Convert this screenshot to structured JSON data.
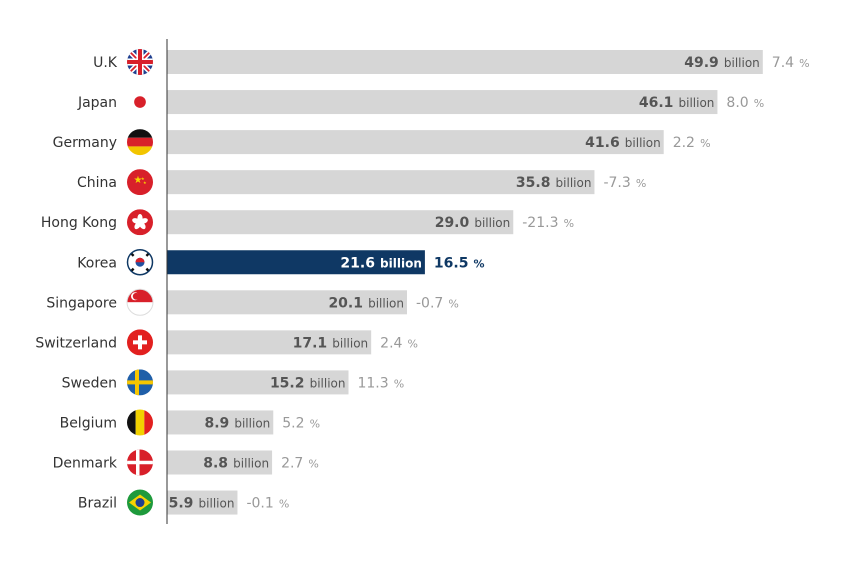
{
  "chart_data": {
    "type": "bar",
    "orientation": "horizontal",
    "categories": [
      "U.K",
      "Japan",
      "Germany",
      "China",
      "Hong Kong",
      "Korea",
      "Singapore",
      "Switzerland",
      "Sweden",
      "Belgium",
      "Denmark",
      "Brazil"
    ],
    "values": [
      49.9,
      46.1,
      41.6,
      35.8,
      29.0,
      21.6,
      20.1,
      17.1,
      15.2,
      8.9,
      8.8,
      5.9
    ],
    "value_labels": [
      "49.9",
      "46.1",
      "41.6",
      "35.8",
      "29.0",
      "21.6",
      "20.1",
      "17.1",
      "15.2",
      "8.9",
      "8.8",
      "5.9"
    ],
    "value_unit": "billion",
    "changes": [
      "7.4",
      "8.0",
      "2.2",
      "-7.3",
      "-21.3",
      "16.5",
      "-0.7",
      "2.4",
      "11.3",
      "5.2",
      "2.7",
      "-0.1"
    ],
    "change_unit": "%",
    "highlight": "Korea",
    "flags": [
      "uk-flag-icon",
      "japan-flag-icon",
      "germany-flag-icon",
      "china-flag-icon",
      "hong-kong-flag-icon",
      "korea-flag-icon",
      "singapore-flag-icon",
      "switzerland-flag-icon",
      "sweden-flag-icon",
      "belgium-flag-icon",
      "denmark-flag-icon",
      "brazil-flag-icon"
    ],
    "xlim": [
      0,
      50
    ],
    "grid": false,
    "colors": {
      "bar": "#d6d6d6",
      "bar_highlight": "#0f3864",
      "value_text": "#555555",
      "pct_text": "#999999",
      "highlight_value_text": "#ffffff",
      "highlight_pct_text": "#0f3864",
      "axis": "#333333"
    }
  }
}
